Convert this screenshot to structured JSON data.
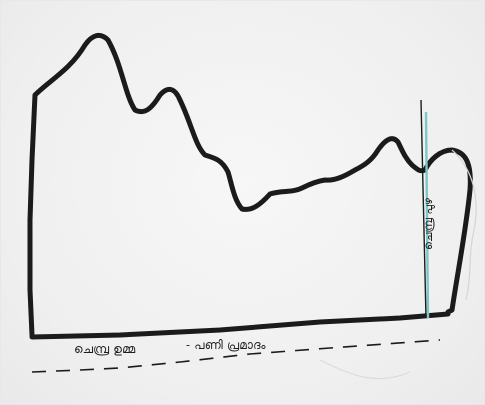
{
  "captions": {
    "left": "ചെമ്പ്ര ഉമ്മ",
    "right": "- പണി പ്രമാദം"
  },
  "vertical_note": "ചെമ്പ്ര പുഴ",
  "colors": {
    "ink": "#1b1b1b",
    "paper": "#f2f2f2",
    "accent_line": "#7dc7c7"
  }
}
